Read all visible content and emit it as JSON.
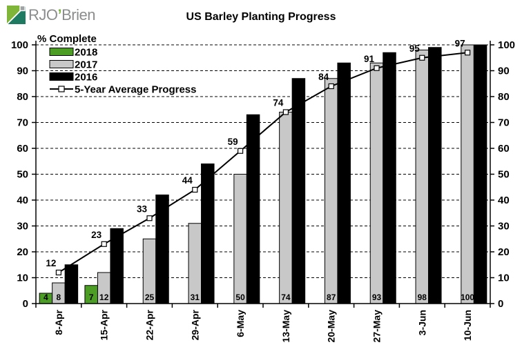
{
  "brand": {
    "name_left": "RJO",
    "apostrophe": "’",
    "name_right": "Brien"
  },
  "header": {
    "title": "US Barley Planting Progress"
  },
  "chart_data": {
    "type": "bar",
    "title": "US Barley Planting Progress",
    "ylabel": "% Complete",
    "xlabel": "",
    "ylim": [
      0,
      100
    ],
    "ytick_step": 10,
    "y_axis_right_mirror": true,
    "grid": "horizontal-dashed",
    "legend_position": "top-left-inside",
    "categories": [
      "8-Apr",
      "15-Apr",
      "22-Apr",
      "29-Apr",
      "6-May",
      "13-May",
      "20-May",
      "27-May",
      "3-Jun",
      "10-Jun"
    ],
    "series": [
      {
        "name": "2018",
        "kind": "bar",
        "color": "#4b9e23",
        "values": [
          4,
          7,
          null,
          null,
          null,
          null,
          null,
          null,
          null,
          null
        ],
        "value_labels": "inside-base"
      },
      {
        "name": "2017",
        "kind": "bar",
        "color": "#c8c8c8",
        "values": [
          8,
          12,
          25,
          31,
          50,
          74,
          87,
          93,
          98,
          100
        ],
        "value_labels": "inside-base"
      },
      {
        "name": "2016",
        "kind": "bar",
        "color": "#000000",
        "values": [
          15,
          29,
          42,
          54,
          73,
          87,
          93,
          97,
          99,
          100
        ],
        "value_labels": "none"
      },
      {
        "name": "5-Year Average Progress",
        "kind": "line",
        "color": "#000000",
        "marker": "open-square",
        "values": [
          12,
          23,
          33,
          44,
          59,
          74,
          84,
          91,
          95,
          97
        ],
        "value_labels": "above"
      }
    ]
  },
  "logo_colors": {
    "dark_teal": "#1e7b62",
    "light_green": "#7fb539",
    "gray_square": "#9ea2a4"
  }
}
